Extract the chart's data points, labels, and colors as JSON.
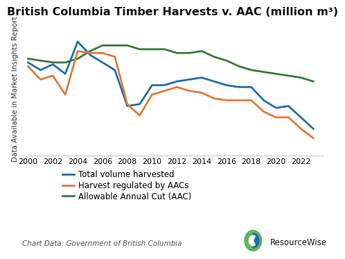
{
  "title": "British Columbia Timber Harvests v. AAC (million m³)",
  "ylabel": "Data Available in Market Insights Report",
  "source_text": "Chart Data: Government of British Columbia",
  "years": [
    2000,
    2001,
    2002,
    2003,
    2004,
    2005,
    2006,
    2007,
    2008,
    2009,
    2010,
    2011,
    2012,
    2013,
    2014,
    2015,
    2016,
    2017,
    2018,
    2019,
    2020,
    2021,
    2022,
    2023
  ],
  "total_volume": [
    74,
    70,
    73,
    68,
    85,
    78,
    74,
    70,
    51,
    52,
    62,
    62,
    64,
    65,
    66,
    64,
    62,
    61,
    61,
    54,
    50,
    51,
    45,
    39
  ],
  "harvest_regulated": [
    72,
    65,
    67,
    57,
    80,
    79,
    79,
    77,
    52,
    46,
    57,
    59,
    61,
    59,
    58,
    55,
    54,
    54,
    54,
    48,
    45,
    45,
    39,
    34
  ],
  "aac": [
    76,
    75,
    74,
    74,
    76,
    80,
    83,
    83,
    83,
    81,
    81,
    81,
    79,
    79,
    80,
    77,
    75,
    72,
    70,
    69,
    68,
    67,
    66,
    64
  ],
  "color_total": "#1f6fad",
  "color_regulated": "#e07b39",
  "color_aac": "#3a7a3a",
  "bg_color": "#ffffff",
  "grid_color": "#d0d0d0",
  "label_total": "Total volume harvested",
  "label_regulated": "Harvest regulated by AACs",
  "label_aac": "Allowable Annual Cut (AAC)",
  "linewidth": 2.0,
  "ylim_bottom": 25,
  "ylim_top": 95,
  "xtick_years": [
    2000,
    2002,
    2004,
    2006,
    2008,
    2010,
    2012,
    2014,
    2016,
    2018,
    2020,
    2022
  ],
  "title_fontsize": 11.5,
  "tick_fontsize": 8,
  "legend_fontsize": 8.5,
  "ylabel_fontsize": 7.5,
  "source_fontsize": 7.5
}
